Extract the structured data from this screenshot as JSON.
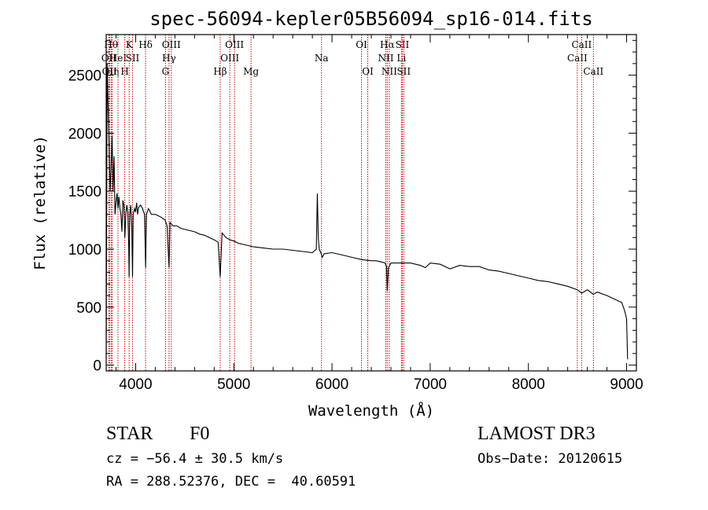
{
  "chart_data": {
    "type": "line",
    "title": "spec-56094-kepler05B56094_sp16-014.fits",
    "xlabel": "Wavelength (Å)",
    "ylabel": "Flux (relative)",
    "xlim": [
      3700,
      9100
    ],
    "ylim": [
      -50,
      2850
    ],
    "xticks": [
      4000,
      5000,
      6000,
      7000,
      8000,
      9000
    ],
    "yticks": [
      0,
      500,
      1000,
      1500,
      2000,
      2500
    ],
    "series": [
      {
        "name": "spectrum",
        "x": [
          3700,
          3710,
          3720,
          3730,
          3740,
          3750,
          3760,
          3770,
          3780,
          3790,
          3800,
          3810,
          3820,
          3830,
          3840,
          3850,
          3860,
          3870,
          3880,
          3890,
          3900,
          3910,
          3920,
          3930,
          3933,
          3940,
          3950,
          3960,
          3968,
          3975,
          3990,
          4000,
          4010,
          4020,
          4030,
          4050,
          4070,
          4090,
          4101,
          4110,
          4130,
          4160,
          4200,
          4250,
          4300,
          4320,
          4340,
          4350,
          4380,
          4420,
          4460,
          4500,
          4550,
          4600,
          4650,
          4700,
          4750,
          4800,
          4840,
          4861,
          4880,
          4920,
          4960,
          5000,
          5050,
          5100,
          5150,
          5200,
          5300,
          5400,
          5500,
          5600,
          5700,
          5800,
          5840,
          5850,
          5860,
          5870,
          5880,
          5890,
          5900,
          5920,
          6000,
          6100,
          6200,
          6300,
          6400,
          6450,
          6500,
          6540,
          6555,
          6563,
          6575,
          6600,
          6700,
          6800,
          6900,
          6950,
          7000,
          7100,
          7200,
          7300,
          7400,
          7500,
          7600,
          7700,
          7800,
          7900,
          8000,
          8100,
          8200,
          8300,
          8400,
          8498,
          8542,
          8600,
          8662,
          8700,
          8800,
          8900,
          8950,
          8980,
          9000,
          9010
        ],
        "y": [
          50,
          2600,
          2200,
          1900,
          1500,
          1700,
          1980,
          1500,
          1800,
          1300,
          1400,
          1480,
          1350,
          1450,
          1350,
          1300,
          1150,
          1420,
          1380,
          1100,
          1300,
          1380,
          1320,
          1000,
          760,
          1300,
          1380,
          1200,
          760,
          1300,
          1350,
          1320,
          1400,
          1300,
          1360,
          1380,
          1350,
          1300,
          840,
          1300,
          1350,
          1300,
          1300,
          1280,
          1250,
          1200,
          840,
          1230,
          1200,
          1200,
          1180,
          1170,
          1160,
          1150,
          1130,
          1120,
          1100,
          1080,
          1060,
          760,
          1140,
          1100,
          1080,
          1070,
          1050,
          1040,
          1030,
          1020,
          1010,
          1000,
          1000,
          990,
          980,
          970,
          1000,
          1480,
          1100,
          1000,
          980,
          960,
          930,
          960,
          970,
          950,
          930,
          910,
          900,
          900,
          890,
          880,
          850,
          640,
          840,
          880,
          880,
          880,
          860,
          840,
          880,
          870,
          830,
          860,
          850,
          850,
          820,
          810,
          790,
          770,
          750,
          730,
          720,
          700,
          680,
          650,
          620,
          650,
          610,
          630,
          600,
          560,
          540,
          470,
          400,
          50
        ]
      }
    ],
    "lines": [
      {
        "wavelength": 3727,
        "label": "OII",
        "row": 2
      },
      {
        "wavelength": 3734,
        "label": "OII",
        "row": 3
      },
      {
        "wavelength": 3750,
        "label": "Hθ",
        "row": 1
      },
      {
        "wavelength": 3760,
        "label": "Hη",
        "row": 3
      },
      {
        "wavelength": 3820,
        "label": "HeI",
        "row": 2
      },
      {
        "wavelength": 3889,
        "label": "H",
        "row": 3
      },
      {
        "wavelength": 3934,
        "label": "K",
        "row": 1
      },
      {
        "wavelength": 3968,
        "label": "SII",
        "row": 2
      },
      {
        "wavelength": 4101,
        "label": "Hδ",
        "row": 1
      },
      {
        "wavelength": 4304,
        "label": "G",
        "row": 3
      },
      {
        "wavelength": 4340,
        "label": "Hγ",
        "row": 2
      },
      {
        "wavelength": 4363,
        "label": "OIII",
        "row": 1
      },
      {
        "wavelength": 4861,
        "label": "Hβ",
        "row": 3
      },
      {
        "wavelength": 4959,
        "label": "OIII",
        "row": 2
      },
      {
        "wavelength": 5007,
        "label": "OIII",
        "row": 1
      },
      {
        "wavelength": 5175,
        "label": "Mg",
        "row": 3
      },
      {
        "wavelength": 5893,
        "label": "Na",
        "row": 2
      },
      {
        "wavelength": 6300,
        "label": "OI",
        "row": 1
      },
      {
        "wavelength": 6364,
        "label": "OI",
        "row": 3
      },
      {
        "wavelength": 6548,
        "label": "NII",
        "row": 2
      },
      {
        "wavelength": 6563,
        "label": "Hα",
        "row": 1
      },
      {
        "wavelength": 6583,
        "label": "NII",
        "row": 3
      },
      {
        "wavelength": 6707,
        "label": "Li",
        "row": 2
      },
      {
        "wavelength": 6716,
        "label": "SII",
        "row": 1
      },
      {
        "wavelength": 6731,
        "label": "SII",
        "row": 3
      },
      {
        "wavelength": 8498,
        "label": "CaII",
        "row": 2
      },
      {
        "wavelength": 8542,
        "label": "CaII",
        "row": 1
      },
      {
        "wavelength": 8662,
        "label": "CaII",
        "row": 3
      }
    ],
    "line_color": "#cc0000"
  },
  "info": {
    "object_class": "STAR",
    "subclass": "F0",
    "survey": "LAMOST DR3",
    "cz": "cz = −56.4 ± 30.5 km/s",
    "obs_date": "Obs−Date: 20120615",
    "coords": "RA = 288.52376, DEC =  40.60591"
  }
}
